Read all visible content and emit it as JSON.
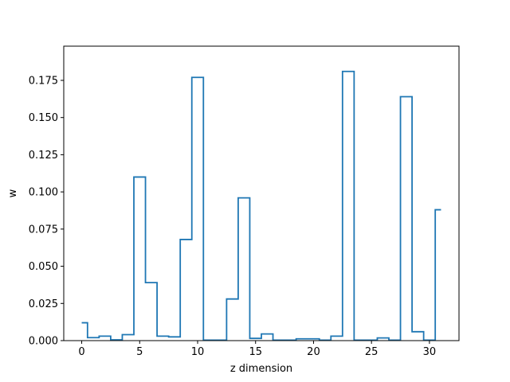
{
  "chart_data": {
    "type": "line",
    "drawstyle": "steps-mid",
    "title": "",
    "xlabel": "z dimension",
    "ylabel": "w",
    "xlim": [
      -1.55,
      32.55
    ],
    "ylim": [
      0.0,
      0.198
    ],
    "x_ticks": [
      0,
      5,
      10,
      15,
      20,
      25,
      30
    ],
    "x_tick_labels": [
      "0",
      "5",
      "10",
      "15",
      "20",
      "25",
      "30"
    ],
    "y_ticks": [
      0.0,
      0.025,
      0.05,
      0.075,
      0.1,
      0.125,
      0.15,
      0.175
    ],
    "y_tick_labels": [
      "0.000",
      "0.025",
      "0.050",
      "0.075",
      "0.100",
      "0.125",
      "0.150",
      "0.175"
    ],
    "grid": false,
    "legend": "none",
    "series": [
      {
        "color": "#1f77b4",
        "x": [
          0,
          1,
          2,
          3,
          4,
          5,
          6,
          7,
          8,
          9,
          10,
          11,
          12,
          13,
          14,
          15,
          16,
          17,
          18,
          19,
          20,
          21,
          22,
          23,
          24,
          25,
          26,
          27,
          28,
          29,
          30,
          31
        ],
        "values": [
          0.012,
          0.002,
          0.003,
          0.0005,
          0.004,
          0.11,
          0.039,
          0.003,
          0.0025,
          0.068,
          0.177,
          0.0003,
          0.0003,
          0.028,
          0.096,
          0.0015,
          0.0045,
          0.0003,
          0.0003,
          0.0012,
          0.0012,
          0.0003,
          0.003,
          0.181,
          0.0003,
          0.0003,
          0.0018,
          0.0003,
          0.164,
          0.006,
          0.0003,
          0.088
        ]
      }
    ]
  }
}
